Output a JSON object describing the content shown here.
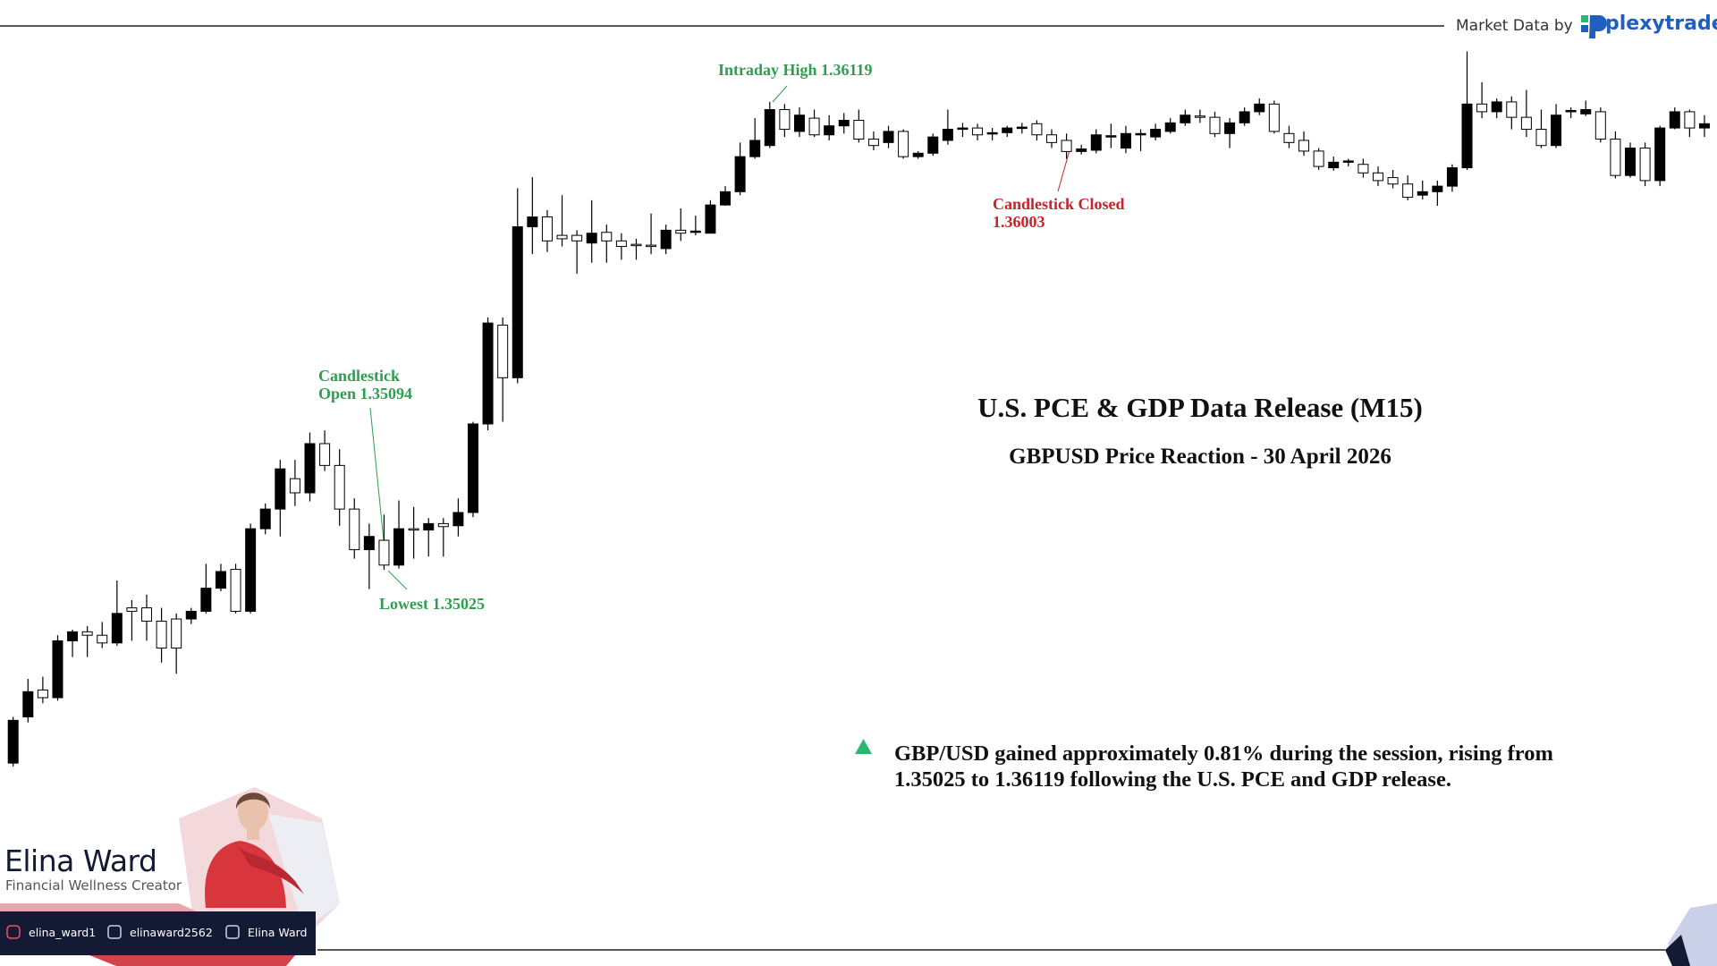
{
  "header": {
    "source_label": "Market Data by",
    "logo_text": "plexytrade"
  },
  "chart_data": {
    "type": "candlestick",
    "title": "U.S. PCE & GDP Data Release (M15)",
    "subtitle": "GBPUSD Price Reaction - 30 April 2026",
    "up_color": "#000000",
    "down_color": "#ffffff",
    "open": [
      1.34573,
      1.34681,
      1.34744,
      1.34726,
      1.34859,
      1.3488,
      1.34872,
      1.34854,
      1.34936,
      1.34936,
      1.34905,
      1.3491,
      1.3491,
      1.34928,
      1.34982,
      1.35026,
      1.34928,
      1.35121,
      1.35167,
      1.35238,
      1.35205,
      1.3532,
      1.35269,
      1.35167,
      1.35072,
      1.35094,
      1.35036,
      1.35121,
      1.35118,
      1.35133,
      1.35128,
      1.35159,
      1.35366,
      1.35597,
      1.35474,
      1.35827,
      1.3585,
      1.35807,
      1.35807,
      1.35789,
      1.35814,
      1.35794,
      1.35786,
      1.35784,
      1.35776,
      1.35819,
      1.35814,
      1.35812,
      1.35878,
      1.35909,
      1.35991,
      1.36017,
      1.36101,
      1.3605,
      1.36081,
      1.36042,
      1.36063,
      1.36076,
      1.36032,
      1.36024,
      1.3605,
      1.35991,
      1.35999,
      1.36029,
      1.36055,
      1.36058,
      1.36045,
      1.36047,
      1.36058,
      1.36068,
      1.36042,
      1.36029,
      1.36003,
      1.36006,
      1.36037,
      1.36011,
      1.36042,
      1.36037,
      1.3605,
      1.3607,
      1.36086,
      1.36083,
      1.36045,
      1.3607,
      1.36096,
      1.36114,
      1.36045,
      1.36029,
      1.36004,
      1.35965,
      1.35978,
      1.35973,
      1.35953,
      1.35942,
      1.35927,
      1.35901,
      1.35909,
      1.35922,
      1.35965,
      1.36114,
      1.36096,
      1.36119,
      1.36083,
      1.36055,
      1.36017,
      1.36096,
      1.36091,
      1.36096,
      1.36032,
      1.35947,
      1.36011,
      1.35935,
      1.36058,
      1.36096,
      1.36058
    ],
    "high": [
      1.34681,
      1.3477,
      1.34775,
      1.34872,
      1.34885,
      1.34893,
      1.34903,
      1.35,
      1.34954,
      1.34967,
      1.34936,
      1.34923,
      1.34936,
      1.35039,
      1.35039,
      1.35039,
      1.35133,
      1.3518,
      1.35282,
      1.35282,
      1.35346,
      1.35351,
      1.35307,
      1.35192,
      1.35133,
      1.35154,
      1.35187,
      1.35172,
      1.35146,
      1.35146,
      1.35192,
      1.35371,
      1.35615,
      1.35615,
      1.35917,
      1.35943,
      1.35866,
      1.35901,
      1.35819,
      1.35889,
      1.35832,
      1.35812,
      1.35799,
      1.35858,
      1.35832,
      1.3587,
      1.35853,
      1.35889,
      1.35922,
      1.36024,
      1.36081,
      1.36119,
      1.36114,
      1.36106,
      1.36101,
      1.36088,
      1.36093,
      1.36101,
      1.3605,
      1.36063,
      1.36055,
      1.36004,
      1.36045,
      1.36101,
      1.3607,
      1.36068,
      1.36058,
      1.36063,
      1.3607,
      1.36076,
      1.36055,
      1.36045,
      1.36019,
      1.36055,
      1.36068,
      1.36063,
      1.36055,
      1.36068,
      1.36081,
      1.36101,
      1.36101,
      1.36096,
      1.36081,
      1.36106,
      1.36127,
      1.36122,
      1.36063,
      1.3605,
      1.36011,
      1.35991,
      1.35986,
      1.35986,
      1.35968,
      1.3596,
      1.35947,
      1.35935,
      1.35935,
      1.35973,
      1.36237,
      1.36165,
      1.36127,
      1.36132,
      1.36147,
      1.36101,
      1.36114,
      1.36106,
      1.36122,
      1.36106,
      1.3605,
      1.36024,
      1.36024,
      1.36063,
      1.36106,
      1.36101,
      1.36088
    ],
    "low": [
      1.34565,
      1.34668,
      1.34713,
      1.34719,
      1.34821,
      1.34821,
      1.34842,
      1.34847,
      1.34859,
      1.34859,
      1.34808,
      1.34782,
      1.34898,
      1.34923,
      1.34975,
      1.34923,
      1.34923,
      1.35108,
      1.35103,
      1.35174,
      1.35185,
      1.35256,
      1.35128,
      1.35051,
      1.3498,
      1.35025,
      1.35028,
      1.35051,
      1.35056,
      1.35056,
      1.35103,
      1.35148,
      1.35351,
      1.35371,
      1.35461,
      1.35763,
      1.35768,
      1.35781,
      1.35717,
      1.35743,
      1.35743,
      1.3575,
      1.3575,
      1.35763,
      1.35763,
      1.35794,
      1.35807,
      1.35812,
      1.35876,
      1.35901,
      1.35986,
      1.36011,
      1.36037,
      1.36037,
      1.36037,
      1.36029,
      1.36045,
      1.36024,
      1.36006,
      1.36011,
      1.35986,
      1.35986,
      1.35993,
      1.36019,
      1.36037,
      1.36029,
      1.36029,
      1.36037,
      1.36045,
      1.36029,
      1.36011,
      1.35986,
      1.35996,
      1.35999,
      1.36011,
      1.35999,
      1.36004,
      1.36029,
      1.36045,
      1.36063,
      1.3607,
      1.36037,
      1.36011,
      1.36063,
      1.36088,
      1.36045,
      1.36011,
      1.35993,
      1.3596,
      1.35958,
      1.35968,
      1.35942,
      1.35922,
      1.35917,
      1.35889,
      1.35891,
      1.35876,
      1.35909,
      1.3596,
      1.36081,
      1.36081,
      1.36055,
      1.36037,
      1.36011,
      1.36011,
      1.36081,
      1.36086,
      1.36024,
      1.3594,
      1.35942,
      1.35922,
      1.35922,
      1.36055,
      1.36037,
      1.36037
    ],
    "close": [
      1.34673,
      1.3474,
      1.34726,
      1.34859,
      1.3488,
      1.34872,
      1.34854,
      1.34923,
      1.34928,
      1.34905,
      1.34842,
      1.34842,
      1.34928,
      1.34982,
      1.35021,
      1.34928,
      1.35121,
      1.35167,
      1.35261,
      1.35205,
      1.3532,
      1.35269,
      1.35167,
      1.35072,
      1.35103,
      1.35036,
      1.35121,
      1.35118,
      1.35133,
      1.35126,
      1.35159,
      1.35366,
      1.35602,
      1.35474,
      1.35827,
      1.3585,
      1.35794,
      1.35799,
      1.35794,
      1.35812,
      1.35794,
      1.35781,
      1.35784,
      1.35781,
      1.35819,
      1.35812,
      1.35817,
      1.35878,
      1.35909,
      1.35991,
      1.36029,
      1.36101,
      1.36055,
      1.36088,
      1.36042,
      1.36063,
      1.36076,
      1.36032,
      1.36017,
      1.3605,
      1.35991,
      1.35999,
      1.36037,
      1.36055,
      1.36058,
      1.36042,
      1.36047,
      1.36058,
      1.3606,
      1.36042,
      1.36024,
      1.36003,
      1.36009,
      1.36042,
      1.3604,
      1.36045,
      1.36045,
      1.36055,
      1.3607,
      1.36088,
      1.36083,
      1.36045,
      1.3607,
      1.36096,
      1.36114,
      1.3605,
      1.36024,
      1.36004,
      1.35968,
      1.35978,
      1.35981,
      1.35953,
      1.35935,
      1.35927,
      1.35896,
      1.35909,
      1.35922,
      1.35965,
      1.36114,
      1.36096,
      1.36119,
      1.36083,
      1.36055,
      1.36017,
      1.36088,
      1.36099,
      1.36101,
      1.36032,
      1.35947,
      1.36011,
      1.35935,
      1.36058,
      1.36096,
      1.36058,
      1.36068
    ],
    "annotations": [
      "Intraday High 1.36119",
      "Candlestick Open 1.35094",
      "Lowest 1.35025",
      "Candlestick Closed 1.36003"
    ]
  },
  "summary": "GBP/USD gained approximately 0.81% during the session, rising from 1.35025 to 1.36119 following the U.S. PCE and GDP release.",
  "branding": {
    "name": "Elina Ward",
    "tagline": "Financial Wellness Creator",
    "socials": [
      "elina_ward1",
      "elinaward2562",
      "Elina Ward"
    ]
  }
}
